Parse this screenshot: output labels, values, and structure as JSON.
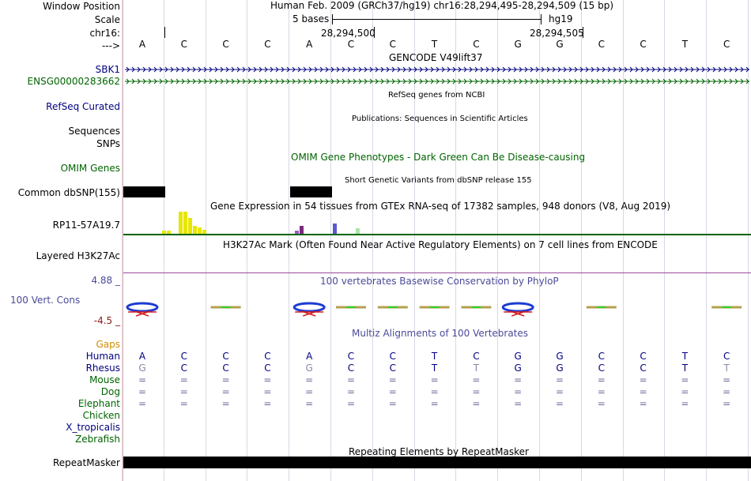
{
  "header": {
    "window_position_label": "Window Position",
    "scale_label": "Scale",
    "chrom_label": "chr16:",
    "strand_label": "--->",
    "position_text": "Human Feb. 2009 (GRCh37/hg19)   chr16:28,294,495-28,294,509 (15 bp)",
    "scale_text": "5 bases",
    "assembly": "hg19",
    "coord1": "28,294,500",
    "coord2": "28,294,505"
  },
  "sequence": [
    "A",
    "C",
    "C",
    "C",
    "A",
    "C",
    "C",
    "T",
    "C",
    "G",
    "G",
    "C",
    "C",
    "T",
    "C"
  ],
  "tracks": {
    "gencode_title": "GENCODE V49lift37",
    "sbk1_label": "SBK1",
    "ensg_label": "ENSG00000283662",
    "refseq_label": "RefSeq Curated",
    "refseq_title": "RefSeq genes from NCBI",
    "sequences_label": "Sequences",
    "publications_title": "Publications: Sequences in Scientific Articles",
    "snps_label": "SNPs",
    "omim_title": "OMIM Gene Phenotypes - Dark Green Can Be Disease-causing",
    "omim_label": "OMIM Genes",
    "dbsnp_title": "Short Genetic Variants from dbSNP release 155",
    "dbsnp_label": "Common dbSNP(155)",
    "gtex_title": "Gene Expression in 54 tissues from GTEx RNA-seq of 17382 samples, 948 donors (V8, Aug 2019)",
    "gtex_label": "RP11-57A19.7",
    "h3k27_title": "H3K27Ac Mark (Often Found Near Active Regulatory Elements) on 7 cell lines from ENCODE",
    "h3k27_label": "Layered H3K27Ac",
    "phylop_title": "100 vertebrates Basewise Conservation by PhyloP",
    "phylop_max": "4.88 _",
    "phylop_label": "100 Vert. Cons",
    "phylop_min": "-4.5 _",
    "multiz_title": "Multiz Alignments of 100 Vertebrates",
    "gaps_label": "Gaps",
    "repeat_title": "Repeating Elements by RepeatMasker",
    "repeat_label": "RepeatMasker"
  },
  "alignment": [
    {
      "species": "Human",
      "color": "#000080",
      "bases": [
        "A",
        "C",
        "C",
        "C",
        "A",
        "C",
        "C",
        "T",
        "C",
        "G",
        "G",
        "C",
        "C",
        "T",
        "C"
      ]
    },
    {
      "species": "Rhesus",
      "color": "#000080",
      "bases": [
        "G",
        "C",
        "C",
        "C",
        "G",
        "C",
        "C",
        "T",
        "T",
        "G",
        "G",
        "C",
        "C",
        "T",
        "T"
      ]
    },
    {
      "species": "Mouse",
      "color": "#006400",
      "bases": [
        "=",
        "=",
        "=",
        "=",
        "=",
        "=",
        "=",
        "=",
        "=",
        "=",
        "=",
        "=",
        "=",
        "=",
        "="
      ]
    },
    {
      "species": "Dog",
      "color": "#006400",
      "bases": [
        "=",
        "=",
        "=",
        "=",
        "=",
        "=",
        "=",
        "=",
        "=",
        "=",
        "=",
        "=",
        "=",
        "=",
        "="
      ]
    },
    {
      "species": "Elephant",
      "color": "#006400",
      "bases": [
        "=",
        "=",
        "=",
        "=",
        "=",
        "=",
        "=",
        "=",
        "=",
        "=",
        "=",
        "=",
        "=",
        "=",
        "="
      ]
    },
    {
      "species": "Chicken",
      "color": "#006400",
      "bases": []
    },
    {
      "species": "X_tropicalis",
      "color": "#000080",
      "bases": []
    },
    {
      "species": "Zebrafish",
      "color": "#006400",
      "bases": []
    }
  ],
  "colors": {
    "nav_blue": "#000080",
    "gencode_green": "#006400",
    "omim_green": "#006400",
    "phylop_blue": "#4a4a9a",
    "phylop_red": "#8b1a1a",
    "gaps_orange": "#d28c00",
    "gtex_yellow": "#e6e600"
  },
  "icons": {
    "gene_strand": "chevron-right-icon"
  }
}
